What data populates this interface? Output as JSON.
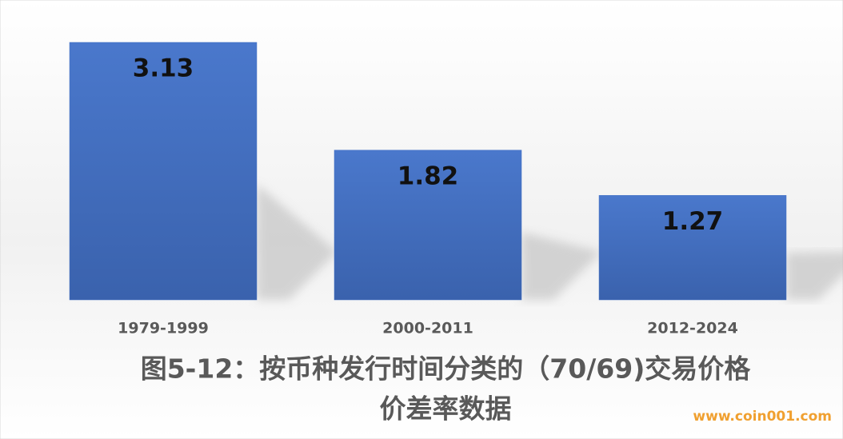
{
  "chart_data": {
    "type": "bar",
    "title": [
      "图5-12：按币种发行时间分类的（70/69)交易价格",
      "价差率数据"
    ],
    "categories": [
      "1979-1999",
      "2000-2011",
      "2012-2024"
    ],
    "values": [
      3.13,
      1.82,
      1.27
    ],
    "color": "#4472c4"
  },
  "watermark": "www.coin001.com"
}
